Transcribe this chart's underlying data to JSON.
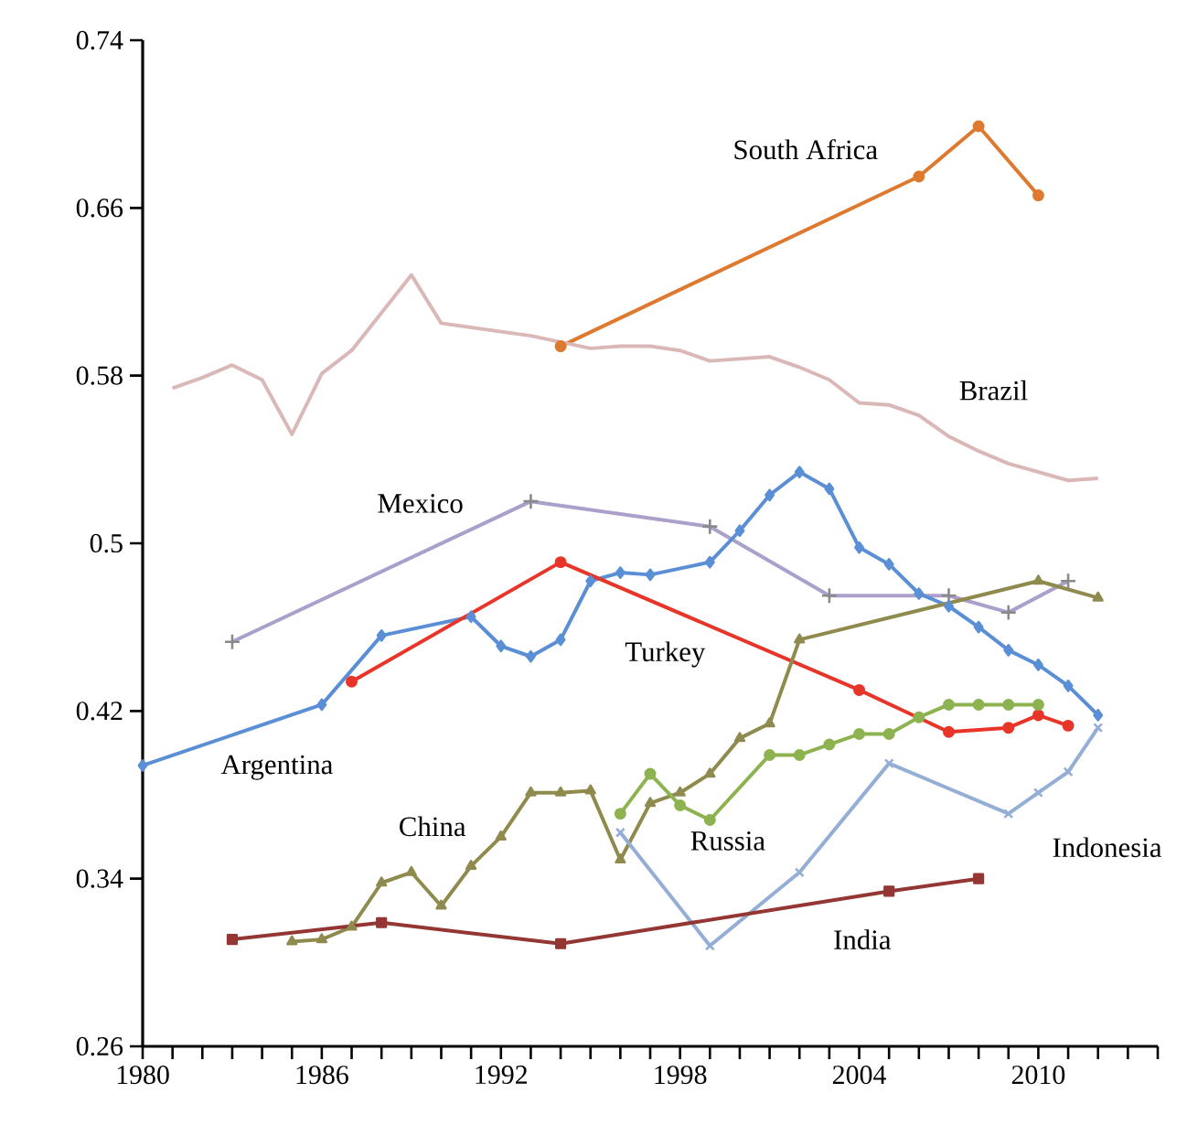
{
  "chart_data": {
    "type": "line",
    "xlim": [
      1980,
      2014
    ],
    "xticks": [
      1980,
      {
        "value": 1981,
        "label": null
      },
      {
        "value": 1982,
        "label": null
      },
      {
        "value": 1983,
        "label": null
      },
      {
        "value": 1984,
        "label": null
      },
      {
        "value": 1985,
        "label": null
      },
      1986,
      {
        "value": 1987,
        "label": null
      },
      {
        "value": 1988,
        "label": null
      },
      {
        "value": 1989,
        "label": null
      },
      {
        "value": 1990,
        "label": null
      },
      {
        "value": 1991,
        "label": null
      },
      1992,
      {
        "value": 1993,
        "label": null
      },
      {
        "value": 1994,
        "label": null
      },
      {
        "value": 1995,
        "label": null
      },
      {
        "value": 1996,
        "label": null
      },
      {
        "value": 1997,
        "label": null
      },
      1998,
      {
        "value": 1999,
        "label": null
      },
      {
        "value": 2000,
        "label": null
      },
      {
        "value": 2001,
        "label": null
      },
      {
        "value": 2002,
        "label": null
      },
      {
        "value": 2003,
        "label": null
      },
      2004,
      {
        "value": 2005,
        "label": null
      },
      {
        "value": 2006,
        "label": null
      },
      {
        "value": 2007,
        "label": null
      },
      {
        "value": 2008,
        "label": null
      },
      {
        "value": 2009,
        "label": null
      },
      2010,
      {
        "value": 2011,
        "label": null
      },
      {
        "value": 2012,
        "label": null
      },
      {
        "value": 2013,
        "label": null
      },
      {
        "value": 2014,
        "label": null
      }
    ],
    "ylim": [
      0.26,
      0.74
    ],
    "yticks": [
      0.26,
      0.34,
      0.42,
      0.5,
      0.58,
      0.66,
      0.74
    ],
    "grid": false,
    "legend": false,
    "line_style": "solid",
    "series": [
      {
        "name": "South Africa",
        "color": "#dd7a2f",
        "marker": "circle",
        "x": [
          1994,
          2006,
          2008,
          2010
        ],
        "values": [
          0.594,
          0.675,
          0.699,
          0.666
        ]
      },
      {
        "name": "Brazil",
        "color": "#dbb8b8",
        "marker": "none",
        "x": [
          1981,
          1982,
          1983,
          1984,
          1985,
          1986,
          1987,
          1988,
          1989,
          1990,
          1993,
          1995,
          1996,
          1997,
          1998,
          1999,
          2001,
          2002,
          2003,
          2004,
          2005,
          2006,
          2007,
          2008,
          2009,
          2011,
          2012
        ],
        "values": [
          0.574,
          0.579,
          0.585,
          0.578,
          0.552,
          0.581,
          0.592,
          0.61,
          0.628,
          0.605,
          0.599,
          0.593,
          0.594,
          0.594,
          0.592,
          0.587,
          0.589,
          0.584,
          0.578,
          0.567,
          0.566,
          0.561,
          0.551,
          0.544,
          0.538,
          0.53,
          0.531
        ]
      },
      {
        "name": "Mexico",
        "color": "#aba0cc",
        "marker": "plus",
        "x": [
          1983,
          1993,
          1999,
          2003,
          2007,
          2009,
          2011
        ],
        "values": [
          0.453,
          0.52,
          0.508,
          0.475,
          0.475,
          0.467,
          0.482
        ]
      },
      {
        "name": "Argentina",
        "color": "#5a8fd6",
        "marker": "diamond",
        "x": [
          1980,
          1986,
          1988,
          1991,
          1992,
          1993,
          1994,
          1995,
          1996,
          1997,
          1999,
          2000,
          2001,
          2002,
          2003,
          2004,
          2005,
          2006,
          2007,
          2008,
          2009,
          2010,
          2011,
          2012
        ],
        "values": [
          0.394,
          0.423,
          0.456,
          0.465,
          0.451,
          0.446,
          0.454,
          0.482,
          0.486,
          0.485,
          0.491,
          0.506,
          0.523,
          0.534,
          0.526,
          0.498,
          0.49,
          0.476,
          0.47,
          0.46,
          0.449,
          0.442,
          0.432,
          0.418
        ]
      },
      {
        "name": "Turkey",
        "color": "#e8352a",
        "marker": "circle",
        "x": [
          1987,
          1994,
          2004,
          2007,
          2009,
          2010,
          2011
        ],
        "values": [
          0.434,
          0.491,
          0.43,
          0.41,
          0.412,
          0.418,
          0.413
        ]
      },
      {
        "name": "China",
        "color": "#8f8a4d",
        "marker": "triangle",
        "x": [
          1985,
          1986,
          1987,
          1988,
          1989,
          1990,
          1991,
          1992,
          1993,
          1994,
          1995,
          1996,
          1997,
          1998,
          1999,
          2000,
          2001,
          2002,
          2010,
          2012
        ],
        "values": [
          0.31,
          0.311,
          0.317,
          0.338,
          0.343,
          0.327,
          0.346,
          0.36,
          0.381,
          0.381,
          0.382,
          0.349,
          0.376,
          0.381,
          0.39,
          0.407,
          0.414,
          0.454,
          0.482,
          0.474
        ]
      },
      {
        "name": "Russia",
        "color": "#8db350",
        "marker": "circle",
        "x": [
          1996,
          1997,
          1998,
          1999,
          2001,
          2002,
          2003,
          2004,
          2005,
          2006,
          2007,
          2008,
          2009,
          2010
        ],
        "values": [
          0.371,
          0.39,
          0.375,
          0.368,
          0.399,
          0.399,
          0.404,
          0.409,
          0.409,
          0.417,
          0.423,
          0.423,
          0.423,
          0.423
        ]
      },
      {
        "name": "Indonesia",
        "color": "#94aed6",
        "marker": "cross",
        "x": [
          1996,
          1999,
          2002,
          2005,
          2009,
          2010,
          2011,
          2012
        ],
        "values": [
          0.362,
          0.308,
          0.343,
          0.395,
          0.371,
          0.381,
          0.391,
          0.412
        ]
      },
      {
        "name": "India",
        "color": "#943634",
        "marker": "square",
        "x": [
          1983,
          1988,
          1994,
          2005,
          2008
        ],
        "values": [
          0.311,
          0.319,
          0.309,
          0.334,
          0.34
        ]
      }
    ]
  }
}
